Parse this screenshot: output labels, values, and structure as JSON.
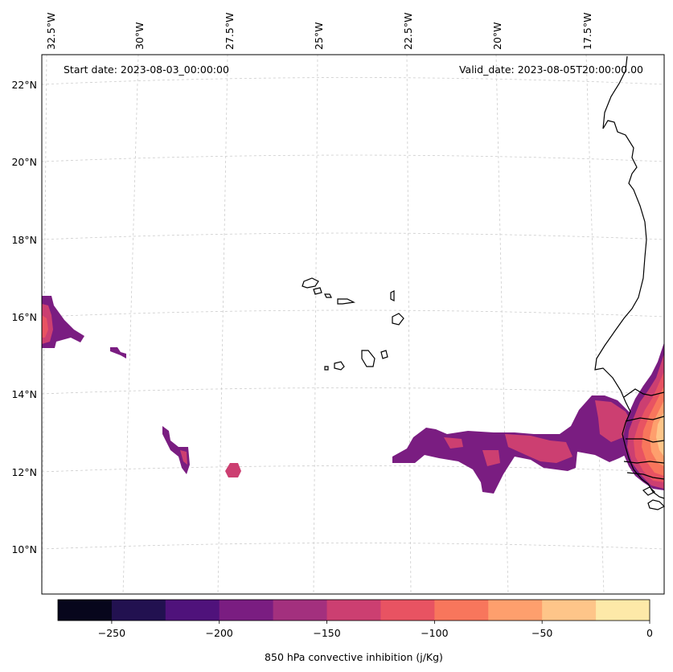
{
  "header": {
    "start_date": "Start date: 2023-08-03_00:00:00",
    "valid_date": "Valid_date: 2023-08-05T20:00:00.00"
  },
  "map": {
    "longitude_labels": [
      "32.5°W",
      "30°W",
      "27.5°W",
      "25°W",
      "22.5°W",
      "20°W",
      "17.5°W"
    ],
    "latitude_labels": [
      "22°N",
      "20°N",
      "18°N",
      "16°N",
      "14°N",
      "12°N",
      "10°N"
    ],
    "gridlines": true,
    "field": "850 hPa convective inhibition",
    "coastline_color": "#000000"
  },
  "colorbar": {
    "label": "850 hPa convective inhibition (j/Kg)",
    "ticks": [
      "−250",
      "−200",
      "−150",
      "−100",
      "−50",
      "0"
    ],
    "min": -275,
    "max": 0,
    "step": 25,
    "colors": [
      "#07061c",
      "#221150",
      "#4f127b",
      "#7a1d81",
      "#a3307e",
      "#cc3f71",
      "#e85362",
      "#f8765c",
      "#fe9f6d",
      "#fec589",
      "#fde9a8"
    ]
  }
}
